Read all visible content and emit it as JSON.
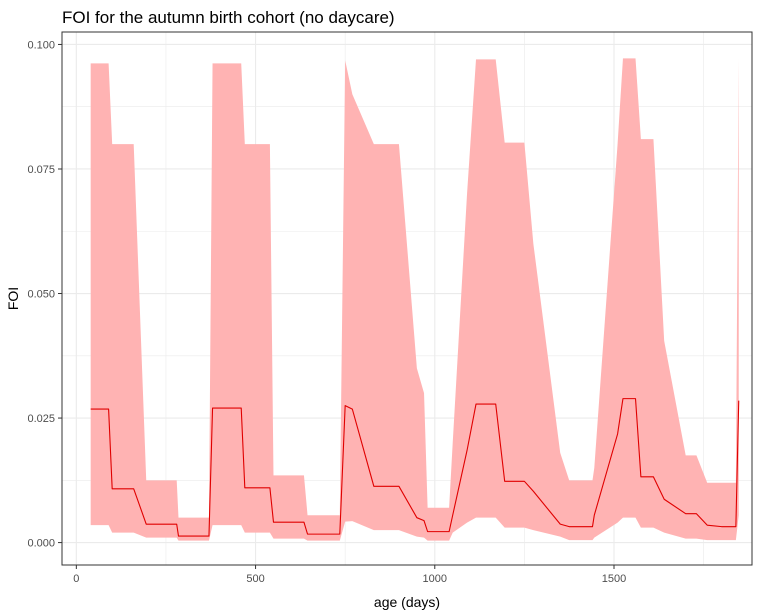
{
  "chart_data": {
    "type": "area",
    "title": "FOI for the autumn birth cohort (no daycare)",
    "xlabel": "age (days)",
    "ylabel": "FOI",
    "xlim": [
      -40,
      1885
    ],
    "ylim": [
      -0.0045,
      0.1025
    ],
    "x_ticks": [
      0,
      500,
      1000,
      1500
    ],
    "x_tick_labels": [
      "0",
      "500",
      "1000",
      "1500"
    ],
    "y_ticks": [
      0.0,
      0.025,
      0.05,
      0.075,
      0.1
    ],
    "y_tick_labels": [
      "0.000",
      "0.025",
      "0.050",
      "0.075",
      "0.100"
    ],
    "grid": true,
    "legend": "none",
    "colors": {
      "ribbon": "#ffb3b3",
      "line": "#e00000",
      "grid": "#ebebeb",
      "panel_border": "#333333"
    },
    "series": [
      {
        "role": "mean line",
        "x": [
          40,
          90,
          100,
          160,
          195,
          280,
          285,
          370,
          380,
          460,
          470,
          540,
          550,
          635,
          645,
          735,
          750,
          770,
          830,
          900,
          950,
          970,
          980,
          1040,
          1050,
          1090,
          1115,
          1170,
          1195,
          1250,
          1275,
          1350,
          1375,
          1440,
          1445,
          1510,
          1525,
          1560,
          1575,
          1610,
          1640,
          1700,
          1730,
          1760,
          1800,
          1840,
          1848
        ],
        "y": [
          0.0268,
          0.0268,
          0.0108,
          0.0108,
          0.0037,
          0.0037,
          0.0013,
          0.0013,
          0.027,
          0.027,
          0.011,
          0.011,
          0.0041,
          0.0041,
          0.0017,
          0.0017,
          0.0275,
          0.0268,
          0.0113,
          0.0113,
          0.005,
          0.0044,
          0.0022,
          0.0022,
          0.0055,
          0.0185,
          0.0278,
          0.0278,
          0.0123,
          0.0123,
          0.0103,
          0.0037,
          0.0032,
          0.0032,
          0.0055,
          0.0218,
          0.0289,
          0.0289,
          0.0132,
          0.0132,
          0.0087,
          0.0058,
          0.0058,
          0.0035,
          0.0032,
          0.0032,
          0.0285
        ]
      },
      {
        "role": "ribbon upper",
        "x": [
          40,
          90,
          100,
          160,
          195,
          280,
          285,
          370,
          380,
          460,
          470,
          540,
          550,
          635,
          645,
          735,
          750,
          770,
          830,
          900,
          950,
          970,
          980,
          1040,
          1050,
          1090,
          1115,
          1170,
          1195,
          1250,
          1275,
          1350,
          1375,
          1440,
          1445,
          1510,
          1525,
          1560,
          1575,
          1610,
          1640,
          1700,
          1730,
          1760,
          1800,
          1840,
          1848
        ],
        "y": [
          0.0962,
          0.0962,
          0.08,
          0.08,
          0.0125,
          0.0125,
          0.005,
          0.005,
          0.0962,
          0.0962,
          0.08,
          0.08,
          0.0135,
          0.0135,
          0.0055,
          0.0055,
          0.0968,
          0.09,
          0.08,
          0.08,
          0.035,
          0.03,
          0.007,
          0.007,
          0.02,
          0.07,
          0.097,
          0.097,
          0.0803,
          0.0803,
          0.06,
          0.018,
          0.0125,
          0.0125,
          0.015,
          0.08,
          0.0972,
          0.0972,
          0.081,
          0.081,
          0.0405,
          0.0175,
          0.0175,
          0.012,
          0.012,
          0.012,
          0.0972
        ]
      },
      {
        "role": "ribbon lower",
        "x": [
          40,
          90,
          100,
          160,
          195,
          280,
          285,
          370,
          380,
          460,
          470,
          540,
          550,
          635,
          645,
          735,
          750,
          770,
          830,
          900,
          950,
          970,
          980,
          1040,
          1050,
          1090,
          1115,
          1170,
          1195,
          1250,
          1275,
          1350,
          1375,
          1440,
          1445,
          1510,
          1525,
          1560,
          1575,
          1610,
          1640,
          1700,
          1730,
          1760,
          1800,
          1840,
          1848
        ],
        "y": [
          0.0035,
          0.0035,
          0.002,
          0.002,
          0.001,
          0.001,
          0.0004,
          0.0004,
          0.0035,
          0.0035,
          0.002,
          0.002,
          0.0008,
          0.0008,
          0.0004,
          0.0004,
          0.0042,
          0.0043,
          0.0025,
          0.0025,
          0.0012,
          0.001,
          0.0004,
          0.0004,
          0.002,
          0.004,
          0.005,
          0.005,
          0.003,
          0.003,
          0.0025,
          0.0012,
          0.0005,
          0.0005,
          0.001,
          0.004,
          0.005,
          0.005,
          0.003,
          0.003,
          0.002,
          0.0008,
          0.0008,
          0.0005,
          0.0005,
          0.0005,
          0.0055
        ]
      }
    ]
  }
}
